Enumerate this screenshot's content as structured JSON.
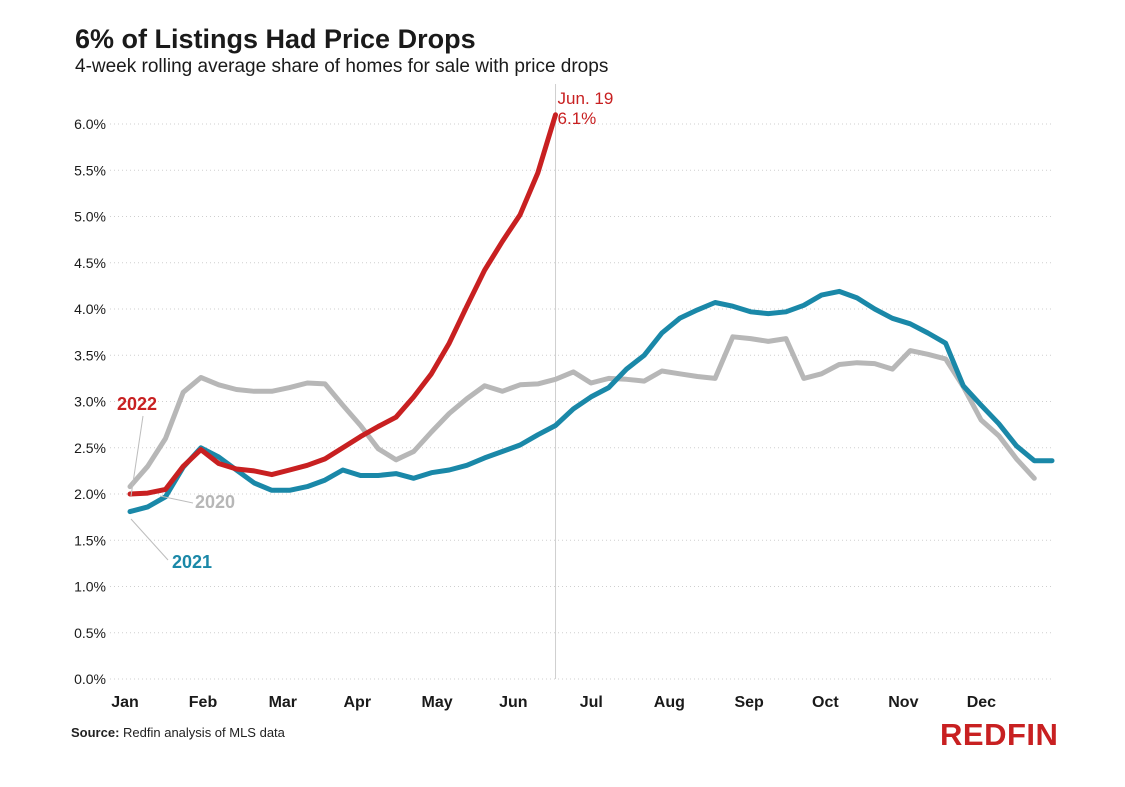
{
  "header": {
    "title": "6% of Listings Had Price Drops",
    "subtitle": "4-week rolling average share of homes for sale with price drops"
  },
  "footer": {
    "source_label": "Source:",
    "source_text": "Redfin analysis of MLS data",
    "logo": "REDFIN"
  },
  "colors": {
    "s2022": "#c82021",
    "s2021": "#1a88a8",
    "s2020": "#b7b7b7",
    "brand": "#c82021"
  },
  "chart_data": {
    "type": "line",
    "title": "6% of Listings Had Price Drops",
    "subtitle": "4-week rolling average share of homes for sale with price drops",
    "xlabel": "",
    "ylabel": "",
    "x_unit": "week of year",
    "xlim": [
      1,
      53
    ],
    "ylim": [
      0,
      6.5
    ],
    "y_ticks": [
      "0.0%",
      "0.5%",
      "1.0%",
      "1.5%",
      "2.0%",
      "2.5%",
      "3.0%",
      "3.5%",
      "4.0%",
      "4.5%",
      "5.0%",
      "5.5%",
      "6.0%"
    ],
    "x_tick_labels": [
      "Jan",
      "Feb",
      "Mar",
      "Apr",
      "May",
      "Jun",
      "Jul",
      "Aug",
      "Sep",
      "Oct",
      "Nov",
      "Dec"
    ],
    "x_tick_weeks": [
      1,
      5.4,
      9.9,
      14.1,
      18.6,
      22.9,
      27.3,
      31.7,
      36.2,
      40.5,
      44.9,
      49.3
    ],
    "grid": true,
    "series": [
      {
        "name": "2022",
        "color": "#c82021",
        "x": [
          1,
          2,
          3,
          4,
          5,
          6,
          7,
          8,
          9,
          10,
          11,
          12,
          13,
          14,
          15,
          16,
          17,
          18,
          19,
          20,
          21,
          22,
          23,
          24,
          25
        ],
        "y": [
          2.0,
          2.01,
          2.05,
          2.3,
          2.48,
          2.33,
          2.27,
          2.25,
          2.21,
          2.26,
          2.31,
          2.38,
          2.5,
          2.62,
          2.73,
          2.83,
          3.05,
          3.3,
          3.63,
          4.03,
          4.42,
          4.73,
          5.02,
          5.47,
          6.1
        ]
      },
      {
        "name": "2021",
        "color": "#1a88a8",
        "x": [
          1,
          2,
          3,
          4,
          5,
          6,
          7,
          8,
          9,
          10,
          11,
          12,
          13,
          14,
          15,
          16,
          17,
          18,
          19,
          20,
          21,
          22,
          23,
          24,
          25,
          26,
          27,
          28,
          29,
          30,
          31,
          32,
          33,
          34,
          35,
          36,
          37,
          38,
          39,
          40,
          41,
          42,
          43,
          44,
          45,
          46,
          47,
          48,
          49,
          50,
          51,
          52,
          53
        ],
        "y": [
          1.81,
          1.86,
          1.97,
          2.29,
          2.5,
          2.4,
          2.26,
          2.12,
          2.04,
          2.04,
          2.08,
          2.15,
          2.26,
          2.2,
          2.2,
          2.22,
          2.17,
          2.23,
          2.26,
          2.31,
          2.39,
          2.46,
          2.53,
          2.64,
          2.74,
          2.92,
          3.05,
          3.15,
          3.35,
          3.5,
          3.74,
          3.9,
          3.99,
          4.07,
          4.03,
          3.97,
          3.95,
          3.97,
          4.04,
          4.15,
          4.19,
          4.12,
          4.0,
          3.9,
          3.84,
          3.74,
          3.63,
          3.17,
          2.96,
          2.76,
          2.52,
          2.36,
          2.36
        ]
      },
      {
        "name": "2020",
        "color": "#b7b7b7",
        "x": [
          1,
          2,
          3,
          4,
          5,
          6,
          7,
          8,
          9,
          10,
          11,
          12,
          13,
          14,
          15,
          16,
          17,
          18,
          19,
          20,
          21,
          22,
          23,
          24,
          25,
          26,
          27,
          28,
          29,
          30,
          31,
          32,
          33,
          34,
          35,
          36,
          37,
          38,
          39,
          40,
          41,
          42,
          43,
          44,
          45,
          46,
          47,
          48,
          49,
          50,
          51,
          52
        ],
        "y": [
          2.08,
          2.3,
          2.6,
          3.1,
          3.26,
          3.18,
          3.13,
          3.11,
          3.11,
          3.15,
          3.2,
          3.19,
          2.96,
          2.74,
          2.49,
          2.37,
          2.46,
          2.67,
          2.87,
          3.03,
          3.17,
          3.11,
          3.18,
          3.19,
          3.24,
          3.32,
          3.2,
          3.25,
          3.24,
          3.22,
          3.33,
          3.3,
          3.27,
          3.25,
          3.7,
          3.68,
          3.65,
          3.68,
          3.25,
          3.3,
          3.4,
          3.42,
          3.41,
          3.35,
          3.55,
          3.51,
          3.46,
          3.16,
          2.8,
          2.63,
          2.38,
          2.17
        ]
      }
    ],
    "annotations": [
      {
        "text": "Jun. 19",
        "week": 25
      },
      {
        "text": "6.1%",
        "week": 25
      }
    ],
    "series_labels": [
      "2022",
      "2020",
      "2021"
    ]
  }
}
